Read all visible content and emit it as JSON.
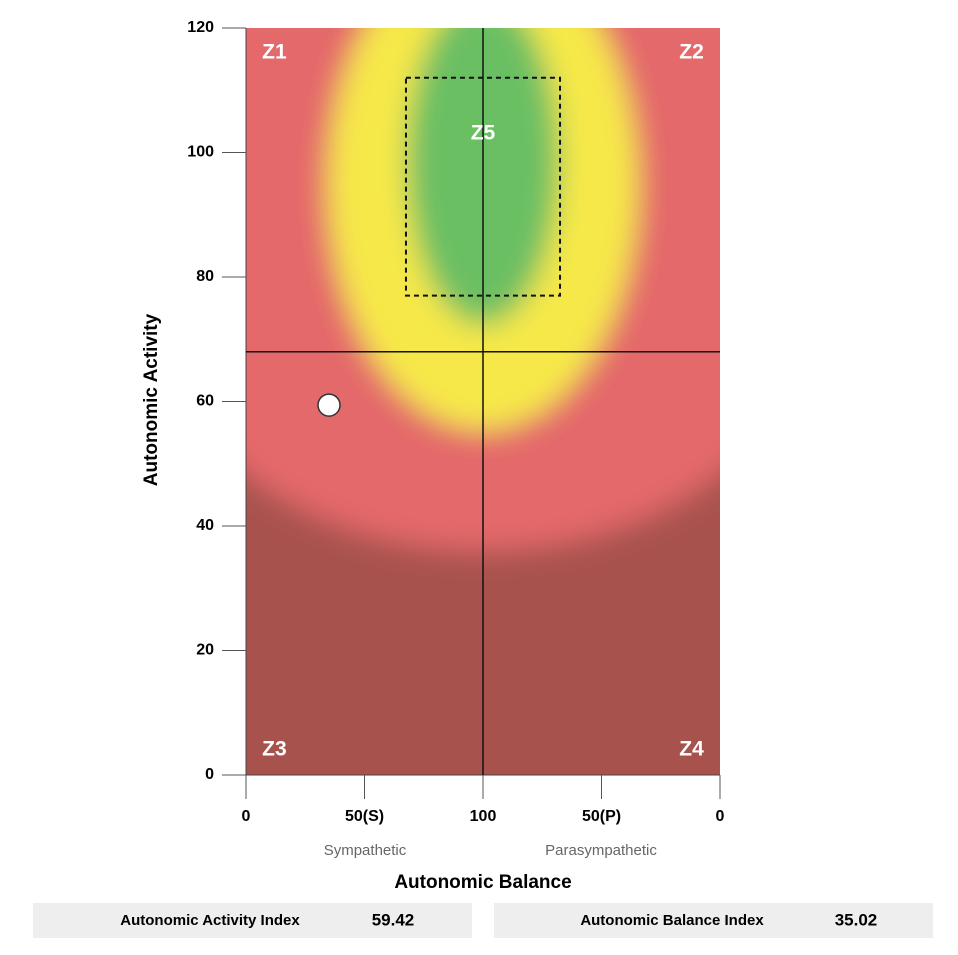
{
  "chart_data": {
    "type": "scatter",
    "xlabel": "Autonomic Balance",
    "ylabel": "Autonomic Activity",
    "x_sublabels": [
      "Sympathetic",
      "Parasympathetic"
    ],
    "x": [
      35.02
    ],
    "values": [
      59.42
    ],
    "color": "#ffffff",
    "index_labels": [
      "Autonomic Activity Index",
      "Autonomic Balance Index"
    ],
    "xlim": [
      0,
      200
    ],
    "ylim": [
      0,
      120
    ],
    "xticks": [
      0,
      {
        "value": 50,
        "label": "50(S)"
      },
      100,
      {
        "value": 150,
        "label": "50(P)"
      },
      {
        "value": 200,
        "label": "0"
      }
    ],
    "yticks": [
      0,
      20,
      40,
      60,
      80,
      100,
      120
    ],
    "crosshair": {
      "x": 100,
      "y": 68
    },
    "target_box": {
      "xlim": [
        67.5,
        132.5
      ],
      "ylim": [
        77,
        112
      ]
    },
    "zones": [
      {
        "label": "Z1",
        "x": 12,
        "y": 116
      },
      {
        "label": "Z2",
        "x": 188,
        "y": 116
      },
      {
        "label": "Z3",
        "x": 12,
        "y": 4
      },
      {
        "label": "Z4",
        "x": 188,
        "y": 4
      },
      {
        "label": "Z5",
        "x": 100,
        "y": 103
      }
    ]
  }
}
